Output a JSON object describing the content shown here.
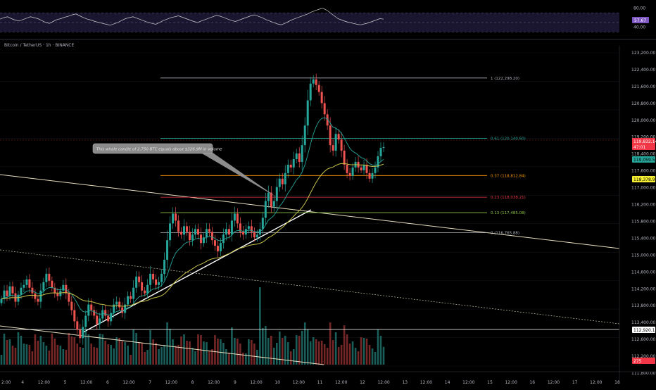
{
  "header": {
    "ticker": "Bitcoin / TetherUS · 1h · BINANCE"
  },
  "rsi_panel": {
    "ticks": [
      "80.00",
      "40.00"
    ],
    "current": "57.67",
    "level_lines": [
      70,
      50,
      30
    ],
    "values": [
      57,
      60,
      62,
      58,
      55,
      53,
      56,
      59,
      62,
      60,
      58,
      54,
      50,
      48,
      52,
      56,
      58,
      61,
      63,
      66,
      68,
      64,
      60,
      57,
      55,
      52,
      50,
      48,
      46,
      44,
      47,
      50,
      54,
      58,
      60,
      62,
      59,
      56,
      53,
      50,
      48,
      46,
      50,
      54,
      57,
      60,
      62,
      64,
      61,
      58,
      55,
      52,
      50,
      53,
      56,
      59,
      62,
      65,
      63,
      60,
      57,
      54,
      52,
      55,
      58,
      61,
      64,
      66,
      63,
      60,
      56,
      53,
      50,
      47,
      45,
      48,
      52,
      56,
      59,
      62,
      65,
      68,
      72,
      75,
      78,
      80,
      76,
      70,
      64,
      58,
      55,
      52,
      50,
      48,
      46,
      45,
      47,
      49,
      52,
      55,
      58,
      57
    ]
  },
  "chart_data": {
    "type": "candlestick",
    "title": "Bitcoin / TetherUS · 1h · BINANCE",
    "ylim": [
      112000,
      123200
    ],
    "y_ticks": [
      "123,200.00",
      "122,400.00",
      "121,600.00",
      "120,800.00",
      "120,000.00",
      "119,200.00",
      "118,400.00",
      "117,600.00",
      "117,000.00",
      "116,200.00",
      "115,800.00",
      "115,400.00",
      "115,000.00",
      "114,600.00",
      "114,200.00",
      "113,800.00",
      "113,400.00",
      "112,600.00",
      "112,200.00",
      "111,800.00"
    ],
    "x_ticks": [
      "2:00",
      "4",
      "12:00",
      "5",
      "12:00",
      "6",
      "12:00",
      "7",
      "12:00",
      "8",
      "12:00",
      "9",
      "12:00",
      "10",
      "12:00",
      "11",
      "12:00",
      "12",
      "12:00",
      "13",
      "12:00",
      "14",
      "12:00",
      "15",
      "12:00",
      "16",
      "12:00",
      "17",
      "12:00",
      "18"
    ],
    "current_price": "119,832.14",
    "countdown": "47:01",
    "ema_fast_value": "119,059.57",
    "ema_slow_value": "118,378.91",
    "support_value": "112,920.13",
    "fib_levels": [
      {
        "ratio": "1",
        "price": 122298.2,
        "label": "1 (122,298.20)",
        "color": "#b2b5be"
      },
      {
        "ratio": "0.61",
        "price": 120140.6,
        "label": "0.61 (120,140.60)",
        "color": "#26a69a"
      },
      {
        "ratio": "0.37",
        "price": 118812.84,
        "label": "0.37 (118,812.84)",
        "color": "#ff9800"
      },
      {
        "ratio": "0.23",
        "price": 118038.21,
        "label": "0.23 (118,038.21)",
        "color": "#f23645"
      },
      {
        "ratio": "0.13",
        "price": 117485.08,
        "label": "0.13 (117,485.08)",
        "color": "#8bc34a"
      },
      {
        "ratio": "0",
        "price": 116765.88,
        "label": "0 (116,765.88)",
        "color": "#b2b5be"
      }
    ],
    "annotation": "This whale candle of 2,750 BTC equals about $326.9M in volume",
    "volume_badge": "275",
    "closes": [
      114400,
      114700,
      114500,
      114850,
      114600,
      114300,
      114550,
      114800,
      114900,
      115100,
      114800,
      114600,
      114400,
      114300,
      114700,
      115000,
      115300,
      115050,
      114800,
      114600,
      114500,
      114700,
      114900,
      114600,
      114300,
      114000,
      113600,
      113300,
      113000,
      113400,
      113800,
      114200,
      114000,
      113800,
      113500,
      113700,
      114000,
      113800,
      113600,
      113900,
      114200,
      114300,
      114100,
      113900,
      114200,
      114500,
      114400,
      114800,
      115200,
      115000,
      114700,
      114600,
      114900,
      115300,
      115100,
      114900,
      115000,
      115300,
      115800,
      116500,
      117100,
      117450,
      117200,
      116800,
      116700,
      117000,
      116800,
      116500,
      116700,
      116900,
      116700,
      116400,
      116600,
      116900,
      116800,
      116500,
      116300,
      116100,
      116400,
      116700,
      116900,
      116700,
      117200,
      117450,
      117100,
      116800,
      116700,
      116900,
      117000,
      116800,
      116600,
      116700,
      116900,
      117300,
      117900,
      118200,
      117700,
      117900,
      118400,
      118700,
      118500,
      118900,
      119200,
      119100,
      119400,
      119600,
      119300,
      119900,
      120600,
      121500,
      122100,
      122250,
      122050,
      121800,
      121400,
      121000,
      120600,
      119900,
      119700,
      120300,
      120100,
      119700,
      119200,
      118900,
      118800,
      119100,
      119300,
      119100,
      119000,
      119200,
      118900,
      118700,
      118900,
      119100,
      119500,
      119800,
      119832
    ]
  },
  "colors": {
    "up": "#26a69a",
    "down": "#ef5350",
    "ema_fast": "#26a69a",
    "ema_slow": "#c8c34a",
    "trend_line": "#e8e0c0",
    "support": "#ffffff"
  }
}
